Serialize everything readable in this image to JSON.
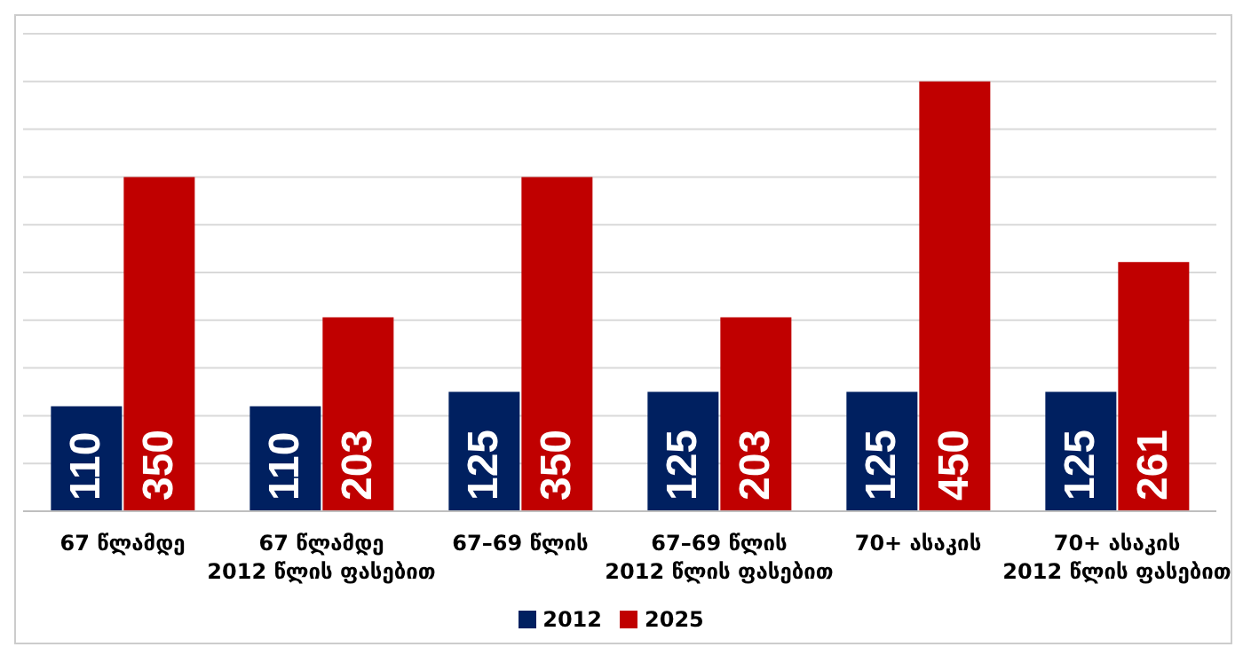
{
  "chart_data": {
    "type": "bar",
    "categories": [
      "67 წლამდე",
      "67 წლამდე\n2012 წლის ფასებით",
      "67–69 წლის",
      "67–69 წლის\n2012 წლის ფასებით",
      "70+ ასაკის",
      "70+ ასაკის\n2012 წლის ფასებით"
    ],
    "series": [
      {
        "name": "2012",
        "color": "#002060",
        "values": [
          110,
          110,
          125,
          125,
          125,
          125
        ]
      },
      {
        "name": "2025",
        "color": "#c00000",
        "values": [
          350,
          203,
          350,
          203,
          450,
          261
        ]
      }
    ],
    "ylim": [
      0,
      500
    ],
    "yticks": [
      {
        "value": 0,
        "label": null
      },
      {
        "value": 50,
        "label": null
      },
      {
        "value": 100,
        "label": null
      },
      {
        "value": 150,
        "label": null
      },
      {
        "value": 200,
        "label": null
      },
      {
        "value": 250,
        "label": null
      },
      {
        "value": 300,
        "label": null
      },
      {
        "value": 350,
        "label": null
      },
      {
        "value": 400,
        "label": null
      },
      {
        "value": 450,
        "label": null
      },
      {
        "value": 500,
        "label": null
      }
    ],
    "tick_labels": "x",
    "grid": "y",
    "legend": "bottom",
    "data_labels": true
  }
}
